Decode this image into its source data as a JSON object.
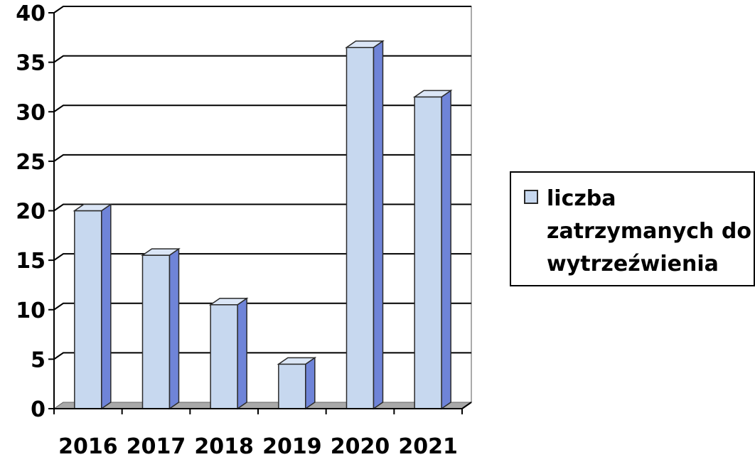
{
  "chart_data": {
    "type": "bar",
    "categories": [
      "2016",
      "2017",
      "2018",
      "2019",
      "2020",
      "2021"
    ],
    "series": [
      {
        "name": "liczba zatrzymanych do wytrzeźwienia",
        "values": [
          20,
          15.5,
          10.5,
          4.5,
          36.5,
          31.5
        ]
      }
    ],
    "ylim": [
      0,
      40
    ],
    "yticks": [
      0,
      5,
      10,
      15,
      20,
      25,
      30,
      35,
      40
    ],
    "grid": true,
    "legend_position": "right",
    "colors": {
      "bar_front": "#c7d8ef",
      "bar_side": "#6f84d8",
      "bar_top": "#dbe6f6",
      "grid": "#000000",
      "wall": "#ffffff",
      "floor": "#a9a9a9"
    }
  }
}
